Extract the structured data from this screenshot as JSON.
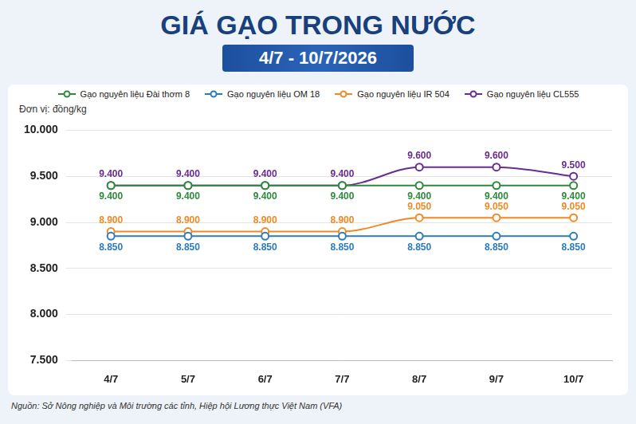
{
  "chart_data": {
    "type": "line",
    "title": "GIÁ GẠO TRONG NƯỚC",
    "subtitle": "4/7 - 10/7/2026",
    "y_label": "Đơn vị: đồng/kg",
    "source": "Nguồn: Sở Nông nghiệp và Môi trường các tỉnh, Hiệp hội Lương thực Việt Nam (VFA)",
    "categories": [
      "4/7",
      "5/7",
      "6/7",
      "7/7",
      "8/7",
      "9/7",
      "10/7"
    ],
    "series": [
      {
        "name": "Gạo nguyên liệu Đài thơm 8",
        "color": "#2e8b3e",
        "marker": "circle",
        "values": [
          9400,
          9400,
          9400,
          9400,
          9400,
          9400,
          9400
        ],
        "value_labels": [
          "9.400",
          "9.400",
          "9.400",
          "9.400",
          "9.400",
          "9.400",
          "9.400"
        ]
      },
      {
        "name": "Gạo nguyên liệu OM 18",
        "color": "#2b7bbf",
        "marker": "circle",
        "values": [
          8850,
          8850,
          8850,
          8850,
          8850,
          8850,
          8850
        ],
        "value_labels": [
          "8.850",
          "8.850",
          "8.850",
          "8.850",
          "8.850",
          "8.850",
          "8.850"
        ]
      },
      {
        "name": "Gạo nguyên liệu IR 504",
        "color": "#f08a24",
        "marker": "circle",
        "values": [
          8900,
          8900,
          8900,
          8900,
          9050,
          9050,
          9050
        ],
        "value_labels": [
          "8.900",
          "8.900",
          "8.900",
          "8.900",
          "9.050",
          "9.050",
          "9.050"
        ]
      },
      {
        "name": "Gạo nguyên liệu CL555",
        "color": "#6a2c91",
        "marker": "circle",
        "values": [
          9400,
          9400,
          9400,
          9400,
          9600,
          9600,
          9500
        ],
        "value_labels": [
          "9.400",
          "9.400",
          "9.400",
          "9.400",
          "9.600",
          "9.600",
          "9.500"
        ]
      }
    ],
    "ylim": [
      7500,
      10000
    ],
    "yticks": [
      {
        "value": 7500,
        "label": "7.500"
      },
      {
        "value": 8000,
        "label": "8.000"
      },
      {
        "value": 8500,
        "label": "8.500"
      },
      {
        "value": 9000,
        "label": "9.000"
      },
      {
        "value": 9500,
        "label": "9.500"
      },
      {
        "value": 10000,
        "label": "10.000"
      }
    ],
    "grid": true,
    "legend": "top",
    "data_labels": true
  }
}
